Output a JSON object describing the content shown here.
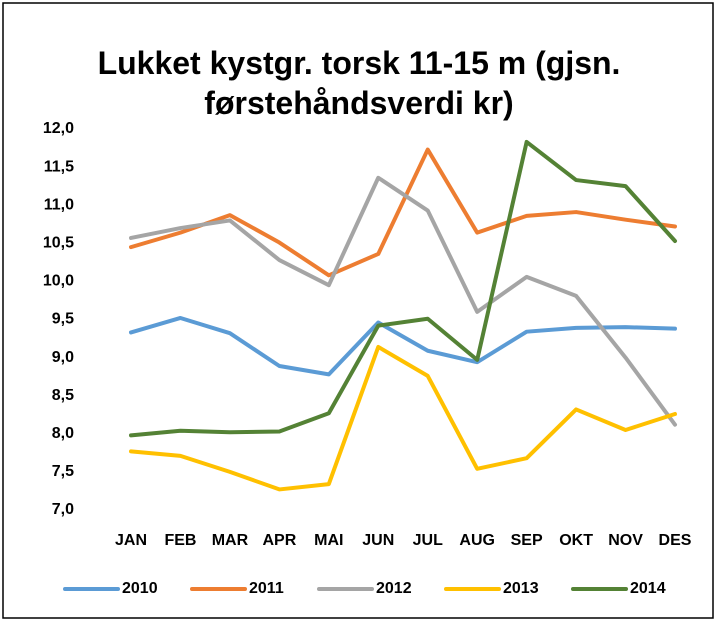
{
  "chart_data": {
    "type": "line",
    "title": "Lukket kystgr. torsk 11-15 m (gjsn. førstehåndsverdi kr)",
    "categories": [
      "JAN",
      "FEB",
      "MAR",
      "APR",
      "MAI",
      "JUN",
      "JUL",
      "AUG",
      "SEP",
      "OKT",
      "NOV",
      "DES"
    ],
    "series": [
      {
        "name": "2010",
        "color": "#5b9bd5",
        "values": [
          9.33,
          9.52,
          9.32,
          8.89,
          8.78,
          9.46,
          9.09,
          8.94,
          9.34,
          9.39,
          9.4,
          9.38
        ]
      },
      {
        "name": "2011",
        "color": "#ed7d31",
        "values": [
          10.45,
          10.64,
          10.87,
          10.51,
          10.08,
          10.36,
          11.73,
          10.64,
          10.86,
          10.91,
          10.81,
          10.72
        ]
      },
      {
        "name": "2012",
        "color": "#a5a5a5",
        "values": [
          10.57,
          10.7,
          10.8,
          10.28,
          9.95,
          11.36,
          10.93,
          9.6,
          10.06,
          9.81,
          9.0,
          8.12
        ]
      },
      {
        "name": "2013",
        "color": "#ffc000",
        "values": [
          7.77,
          7.71,
          7.5,
          7.27,
          7.34,
          9.14,
          8.76,
          7.54,
          7.68,
          8.32,
          8.05,
          8.26
        ]
      },
      {
        "name": "2014",
        "color": "#548235",
        "values": [
          7.98,
          8.04,
          8.02,
          8.03,
          8.27,
          9.42,
          9.51,
          8.97,
          11.83,
          11.33,
          11.25,
          10.53
        ]
      }
    ],
    "ylim": [
      7,
      12
    ],
    "yticks": [
      {
        "value": 7,
        "label": "7,0"
      },
      {
        "value": 7.5,
        "label": "7,5"
      },
      {
        "value": 8,
        "label": "8,0"
      },
      {
        "value": 8.5,
        "label": "8,5"
      },
      {
        "value": 9,
        "label": "9,0"
      },
      {
        "value": 9.5,
        "label": "9,5"
      },
      {
        "value": 10,
        "label": "10,0"
      },
      {
        "value": 10.5,
        "label": "10,5"
      },
      {
        "value": 11,
        "label": "11,0"
      },
      {
        "value": 11.5,
        "label": "11,5"
      },
      {
        "value": 12,
        "label": "12,0"
      }
    ],
    "grid": false,
    "legend": "bottom"
  }
}
